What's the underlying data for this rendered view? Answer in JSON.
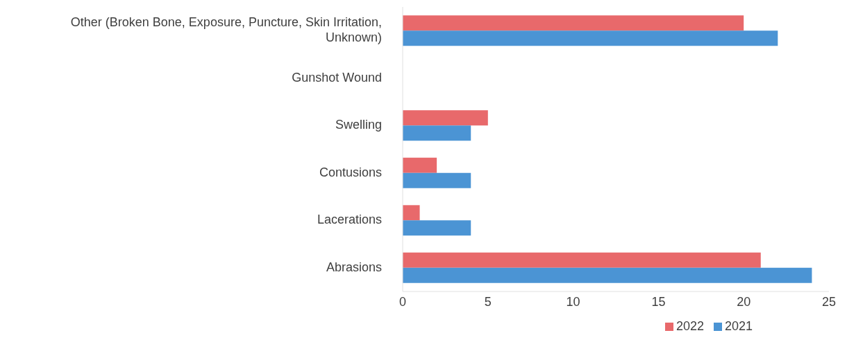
{
  "chart_data": {
    "type": "bar",
    "orientation": "horizontal",
    "categories": [
      "Other (Broken Bone, Exposure, Puncture, Skin Irritation, Unknown)",
      "Gunshot Wound",
      "Swelling",
      "Contusions",
      "Lacerations",
      "Abrasions"
    ],
    "series": [
      {
        "name": "2022",
        "color": "#e8696b",
        "values": [
          20,
          0,
          5,
          2,
          1,
          21
        ]
      },
      {
        "name": "2021",
        "color": "#4b94d4",
        "values": [
          22,
          0,
          4,
          4,
          4,
          24
        ]
      }
    ],
    "xlim": [
      0,
      25
    ],
    "xticks": [
      0,
      5,
      10,
      15,
      20,
      25
    ],
    "legend": "bottom"
  }
}
